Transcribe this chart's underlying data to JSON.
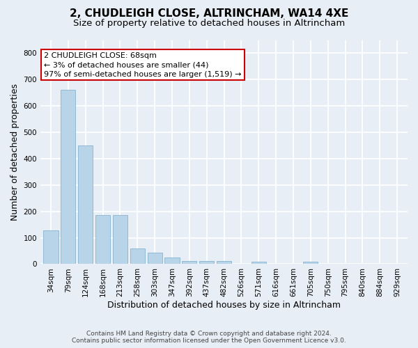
{
  "title": "2, CHUDLEIGH CLOSE, ALTRINCHAM, WA14 4XE",
  "subtitle": "Size of property relative to detached houses in Altrincham",
  "xlabel": "Distribution of detached houses by size in Altrincham",
  "ylabel": "Number of detached properties",
  "categories": [
    "34sqm",
    "79sqm",
    "124sqm",
    "168sqm",
    "213sqm",
    "258sqm",
    "303sqm",
    "347sqm",
    "392sqm",
    "437sqm",
    "482sqm",
    "526sqm",
    "571sqm",
    "616sqm",
    "661sqm",
    "705sqm",
    "750sqm",
    "795sqm",
    "840sqm",
    "884sqm",
    "929sqm"
  ],
  "values": [
    128,
    660,
    450,
    185,
    185,
    60,
    43,
    25,
    13,
    13,
    11,
    0,
    8,
    0,
    0,
    8,
    0,
    0,
    0,
    0,
    0
  ],
  "bar_color": "#b8d4e8",
  "bar_edge_color": "#7aaac8",
  "annotation_text": "2 CHUDLEIGH CLOSE: 68sqm\n← 3% of detached houses are smaller (44)\n97% of semi-detached houses are larger (1,519) →",
  "annotation_box_color": "#ffffff",
  "annotation_box_edge_color": "#cc0000",
  "ylim": [
    0,
    850
  ],
  "yticks": [
    0,
    100,
    200,
    300,
    400,
    500,
    600,
    700,
    800
  ],
  "bg_color": "#e8eef5",
  "plot_bg_color": "#e8eef5",
  "grid_color": "#ffffff",
  "footer_line1": "Contains HM Land Registry data © Crown copyright and database right 2024.",
  "footer_line2": "Contains public sector information licensed under the Open Government Licence v3.0.",
  "title_fontsize": 11,
  "subtitle_fontsize": 9.5,
  "axis_label_fontsize": 9,
  "tick_fontsize": 7.5,
  "annotation_fontsize": 8,
  "ylabel_fontsize": 9
}
